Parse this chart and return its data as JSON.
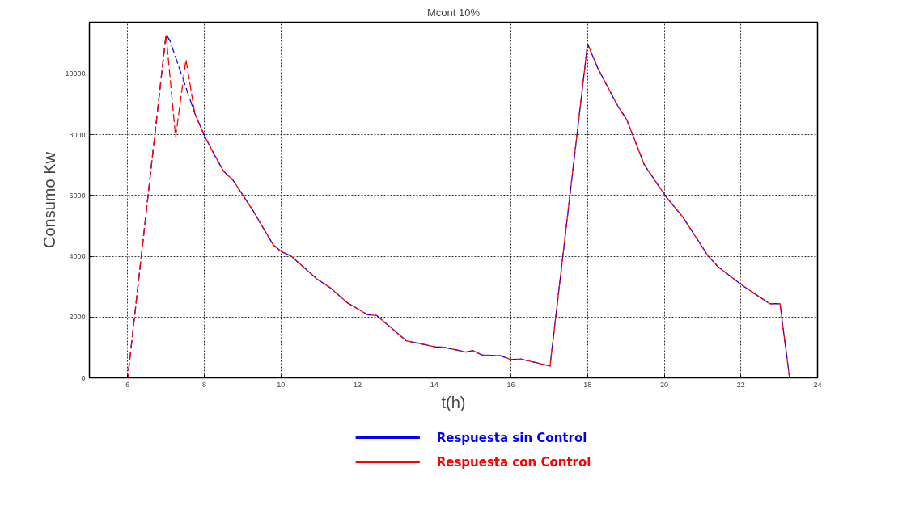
{
  "chart_data": {
    "type": "line",
    "title": "Mcont 10%",
    "xlabel": "t(h)",
    "ylabel": "Consumo Kw",
    "xlim": [
      5,
      24
    ],
    "xticks": [
      6,
      8,
      10,
      12,
      14,
      16,
      18,
      20,
      22,
      24
    ],
    "ylim": [
      0,
      11700
    ],
    "yticks": [
      0,
      2000,
      4000,
      6000,
      8000,
      10000
    ],
    "grid": true,
    "legend": "bottom",
    "line_style": "dashed",
    "series": [
      {
        "name": "Respuesta sin Control",
        "color": "#0000ff",
        "x": [
          5,
          6,
          7,
          7.1,
          7.75,
          8,
          8.27,
          8.5,
          8.75,
          9.27,
          9.79,
          10,
          10.27,
          10.94,
          11.29,
          11.73,
          12.02,
          12.25,
          12.5,
          13.27,
          14.06,
          14.23,
          14.83,
          15,
          15.25,
          15.73,
          16,
          16.25,
          17.02,
          18,
          18.27,
          18.79,
          19.02,
          19.48,
          20.04,
          20.48,
          21.15,
          21.42,
          22.04,
          22.75,
          23.02,
          23.27,
          24
        ],
        "values": [
          0,
          0,
          11300,
          11100,
          8700,
          7970,
          7320,
          6800,
          6500,
          5500,
          4390,
          4160,
          4000,
          3250,
          2960,
          2470,
          2260,
          2080,
          2050,
          1220,
          1010,
          1010,
          850,
          900,
          750,
          730,
          600,
          620,
          390,
          10990,
          10180,
          8940,
          8500,
          7010,
          5970,
          5300,
          4000,
          3640,
          3040,
          2440,
          2440,
          0,
          0
        ]
      },
      {
        "name": "Respuesta con Control",
        "color": "#ff0000",
        "x": [
          5,
          6,
          7,
          7.25,
          7.52,
          7.75,
          8,
          8.27,
          8.5,
          8.75,
          9.27,
          9.79,
          10,
          10.27,
          10.94,
          11.29,
          11.73,
          12.02,
          12.25,
          12.5,
          13.27,
          14.06,
          14.23,
          14.83,
          15,
          15.25,
          15.73,
          16,
          16.25,
          17.02,
          18,
          18.27,
          18.79,
          19.02,
          19.48,
          20.04,
          20.48,
          21.15,
          21.42,
          22.04,
          22.75,
          23.02,
          23.27,
          24
        ],
        "values": [
          0,
          0,
          11300,
          7920,
          10470,
          8700,
          7970,
          7320,
          6800,
          6500,
          5500,
          4390,
          4160,
          4000,
          3250,
          2960,
          2470,
          2260,
          2080,
          2050,
          1220,
          1010,
          1010,
          850,
          900,
          750,
          730,
          600,
          620,
          390,
          10990,
          10180,
          8940,
          8500,
          7010,
          5970,
          5300,
          4000,
          3640,
          3040,
          2440,
          2440,
          0,
          0
        ]
      }
    ]
  }
}
